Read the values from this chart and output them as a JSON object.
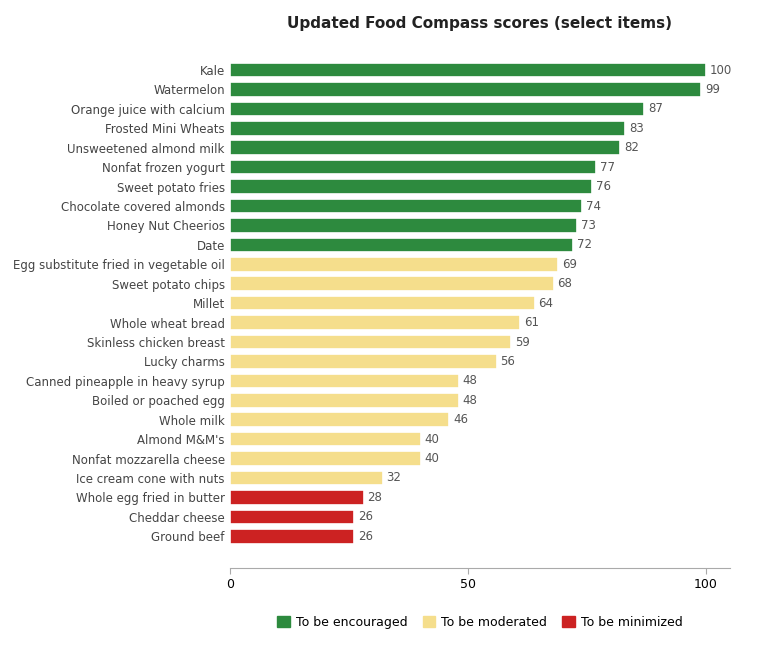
{
  "title": "Updated Food Compass scores (select items)",
  "categories": [
    "Kale",
    "Watermelon",
    "Orange juice with calcium",
    "Frosted Mini Wheats",
    "Unsweetened almond milk",
    "Nonfat frozen yogurt",
    "Sweet potato fries",
    "Chocolate covered almonds",
    "Honey Nut Cheerios",
    "Date",
    "Egg substitute fried in vegetable oil",
    "Sweet potato chips",
    "Millet",
    "Whole wheat bread",
    "Skinless chicken breast",
    "Lucky charms",
    "Canned pineapple in heavy syrup",
    "Boiled or poached egg",
    "Whole milk",
    "Almond M&M's",
    "Nonfat mozzarella cheese",
    "Ice cream cone with nuts",
    "Whole egg fried in butter",
    "Cheddar cheese",
    "Ground beef"
  ],
  "values": [
    100,
    99,
    87,
    83,
    82,
    77,
    76,
    74,
    73,
    72,
    69,
    68,
    64,
    61,
    59,
    56,
    48,
    48,
    46,
    40,
    40,
    32,
    28,
    26,
    26
  ],
  "colors": [
    "#2d8a3e",
    "#2d8a3e",
    "#2d8a3e",
    "#2d8a3e",
    "#2d8a3e",
    "#2d8a3e",
    "#2d8a3e",
    "#2d8a3e",
    "#2d8a3e",
    "#2d8a3e",
    "#f5de8c",
    "#f5de8c",
    "#f5de8c",
    "#f5de8c",
    "#f5de8c",
    "#f5de8c",
    "#f5de8c",
    "#f5de8c",
    "#f5de8c",
    "#f5de8c",
    "#f5de8c",
    "#f5de8c",
    "#cc2222",
    "#cc2222",
    "#cc2222"
  ],
  "legend_labels": [
    "To be encouraged",
    "To be moderated",
    "To be minimized"
  ],
  "legend_colors": [
    "#2d8a3e",
    "#f5de8c",
    "#cc2222"
  ],
  "xlim": [
    0,
    105
  ],
  "xticks": [
    0,
    50,
    100
  ],
  "bar_height": 0.75,
  "background_color": "#ffffff",
  "title_fontsize": 11,
  "label_fontsize": 8.5,
  "value_fontsize": 8.5,
  "tick_fontsize": 9,
  "legend_fontsize": 9
}
